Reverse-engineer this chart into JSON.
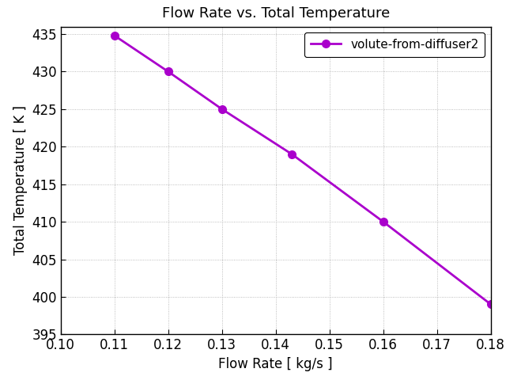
{
  "title": "Flow Rate vs. Total Temperature",
  "xlabel": "Flow Rate [ kg/s ]",
  "ylabel": "Total Temperature [ K ]",
  "x": [
    0.11,
    0.12,
    0.13,
    0.143,
    0.16,
    0.18
  ],
  "y": [
    434.8,
    430.0,
    425.0,
    419.0,
    410.0,
    399.0
  ],
  "line_color": "#aa00cc",
  "marker": "o",
  "marker_size": 7,
  "line_width": 2.0,
  "legend_label": "volute-from-diffuser2",
  "xlim": [
    0.1,
    0.18
  ],
  "ylim": [
    395,
    436
  ],
  "xticks": [
    0.1,
    0.11,
    0.12,
    0.13,
    0.14,
    0.15,
    0.16,
    0.17,
    0.18
  ],
  "yticks": [
    395,
    400,
    405,
    410,
    415,
    420,
    425,
    430,
    435
  ],
  "grid": true,
  "background_color": "#ffffff",
  "title_fontsize": 13,
  "axis_label_fontsize": 12,
  "tick_fontsize": 12,
  "legend_fontsize": 11,
  "figure_width": 6.4,
  "figure_height": 4.8,
  "figure_dpi": 100
}
